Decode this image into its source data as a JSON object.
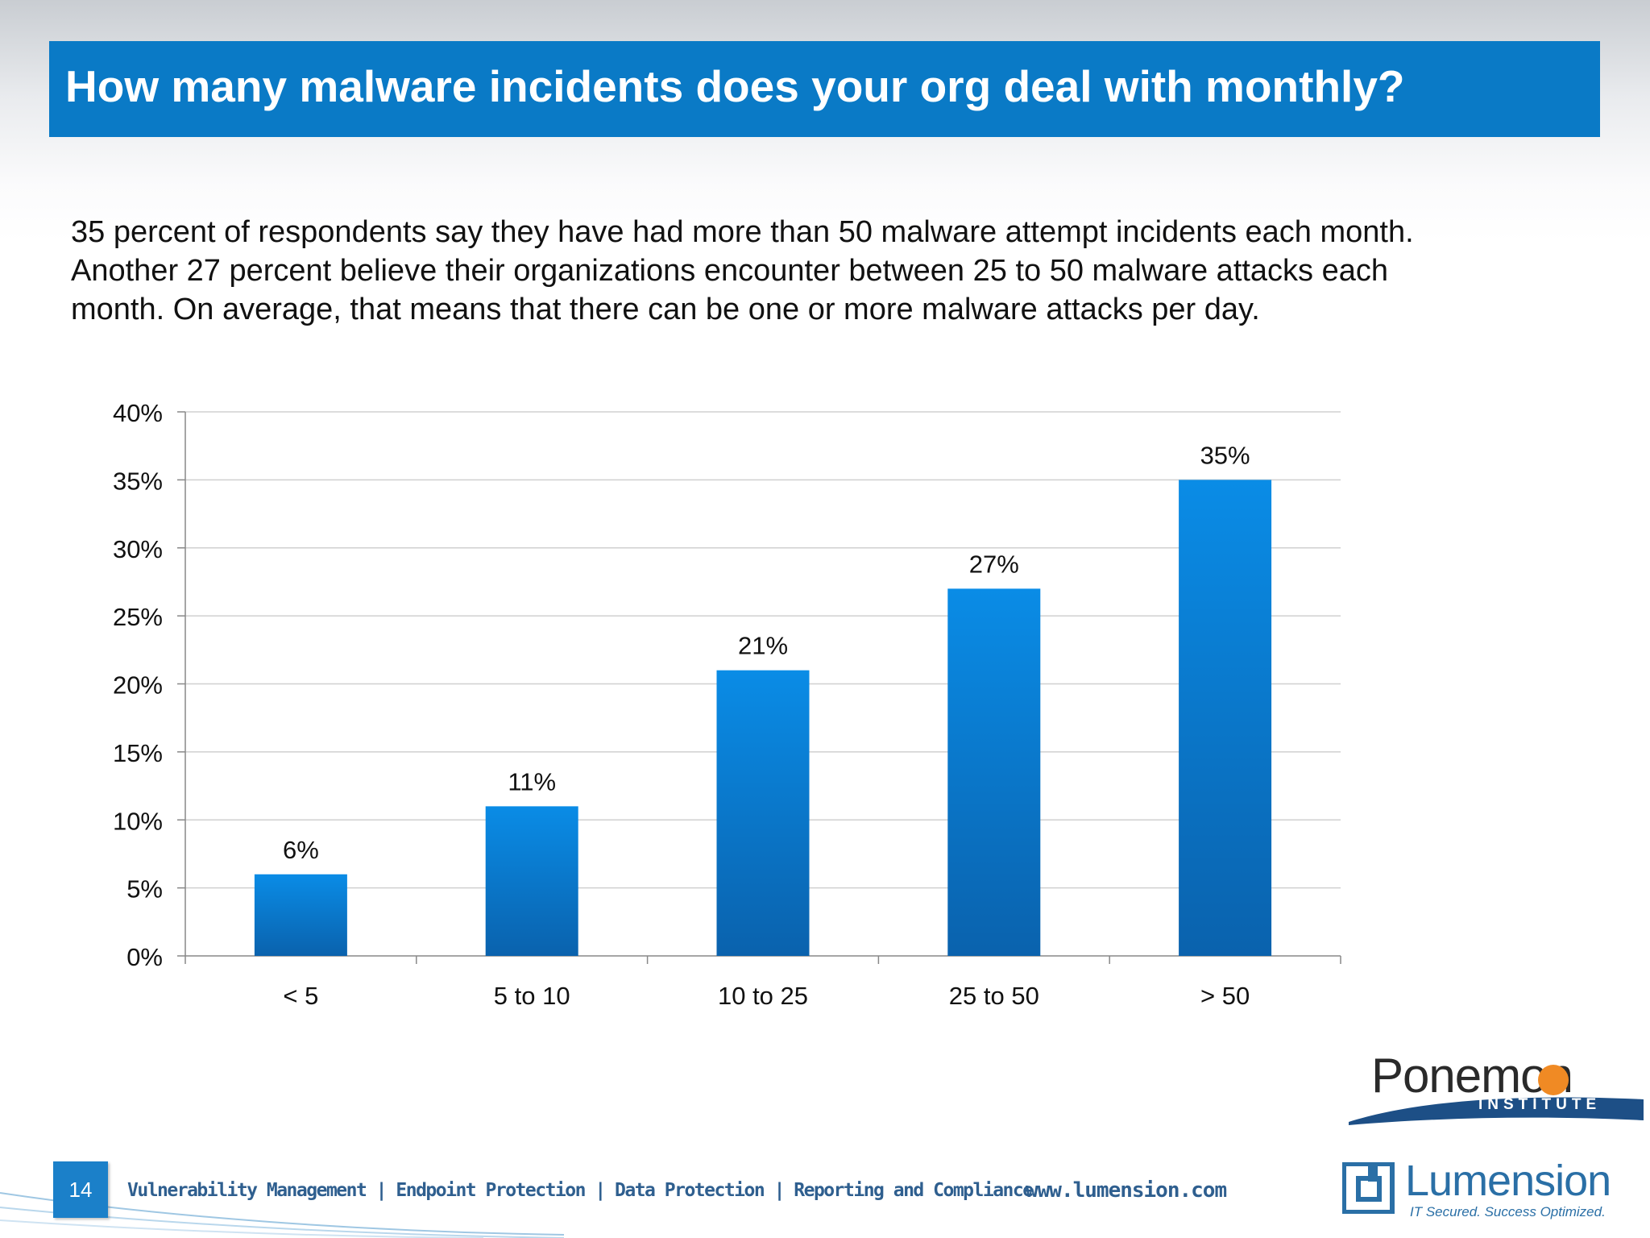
{
  "slide": {
    "title": "How many malware incidents does your org deal with monthly?",
    "intro": "35 percent of respondents say they have had more than 50 malware attempt incidents each month. Another 27 percent believe their organizations encounter between 25 to 50 malware attacks each month.  On average, that means that there can be one or more malware attacks per day.",
    "page_number": "14",
    "footer_tagline": "Vulnerability Management | Endpoint Protection | Data Protection | Reporting and Compliance",
    "website": "www.lumension.com",
    "ponemon": {
      "name": "Ponemon",
      "sub": "INSTITUTE"
    },
    "lumension": {
      "name": "Lumension",
      "tagline": "IT Secured. Success Optimized."
    }
  },
  "colors": {
    "title_bar": "#0a7ac6",
    "bar_top": "#0a8ce6",
    "bar_bottom": "#0a62ad"
  },
  "chart_data": {
    "type": "bar",
    "categories": [
      "< 5",
      "5 to 10",
      "10 to 25",
      "25 to 50",
      "> 50"
    ],
    "values": [
      6,
      11,
      21,
      27,
      35
    ],
    "data_labels": [
      "6%",
      "11%",
      "21%",
      "27%",
      "35%"
    ],
    "yticks": [
      "0%",
      "5%",
      "10%",
      "15%",
      "20%",
      "25%",
      "30%",
      "35%",
      "40%"
    ],
    "ylim": [
      0,
      40
    ],
    "grid": true,
    "legend": "none"
  }
}
